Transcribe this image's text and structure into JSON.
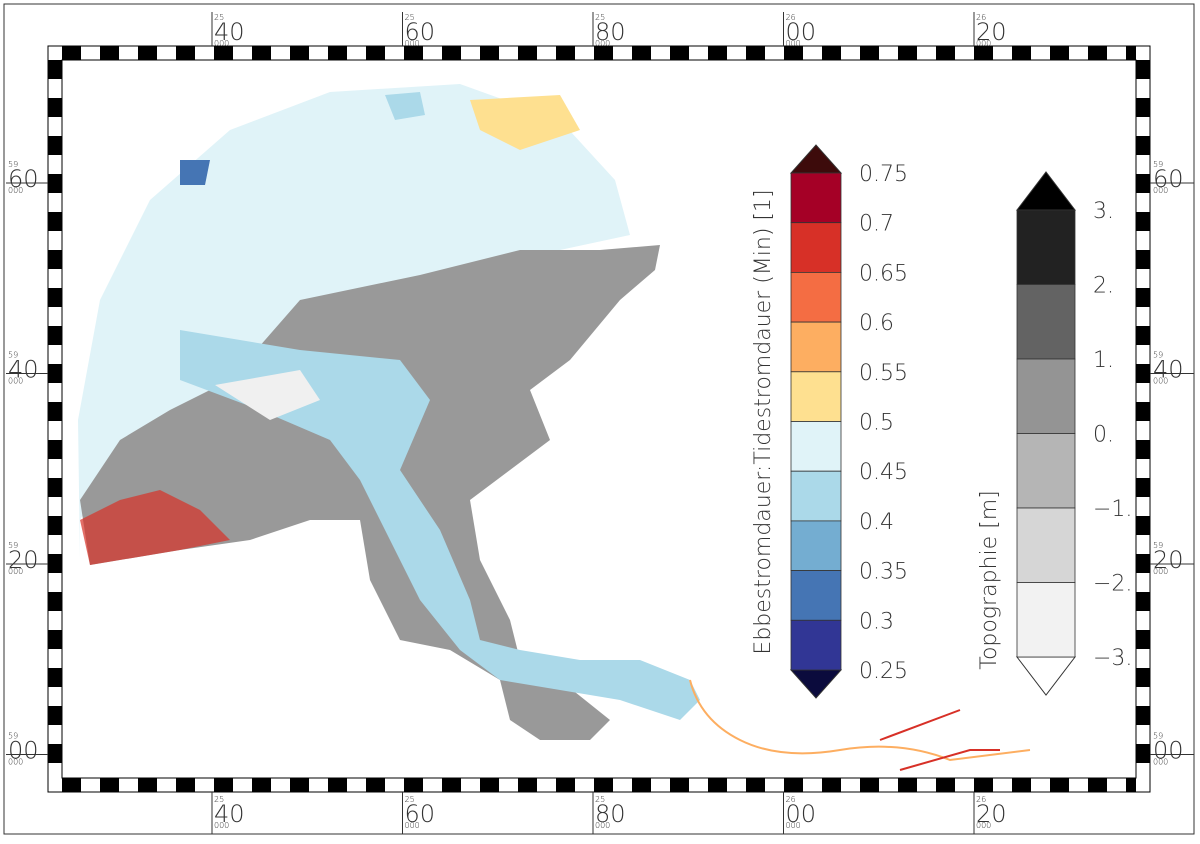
{
  "frame": {
    "x_labels": [
      {
        "deg": "25",
        "min": "40",
        "sub": "000"
      },
      {
        "deg": "25",
        "min": "60",
        "sub": "000"
      },
      {
        "deg": "25",
        "min": "80",
        "sub": "000"
      },
      {
        "deg": "26",
        "min": "00",
        "sub": "000"
      },
      {
        "deg": "26",
        "min": "20",
        "sub": "000"
      }
    ],
    "y_labels": [
      {
        "deg": "59",
        "min": "60",
        "sub": "000"
      },
      {
        "deg": "59",
        "min": "40",
        "sub": "000"
      },
      {
        "deg": "59",
        "min": "20",
        "sub": "000"
      },
      {
        "deg": "59",
        "min": "00",
        "sub": "000"
      }
    ]
  },
  "legend_ratio": {
    "title": "Ebbestromdauer:Tidestromdauer (Min) [1]",
    "labels": [
      "0.75",
      "0.7",
      "0.65",
      "0.6",
      "0.55",
      "0.5",
      "0.45",
      "0.4",
      "0.35",
      "0.3",
      "0.25"
    ],
    "colors": [
      "#a50026",
      "#d73027",
      "#f46d43",
      "#fdae61",
      "#fee090",
      "#e0f3f8",
      "#abd9e9",
      "#74add1",
      "#4575b4",
      "#313695"
    ],
    "over_color": "#3d0b0b",
    "under_color": "#0b0b3d"
  },
  "legend_topo": {
    "title": "Topographie [m]",
    "labels": [
      "3.",
      "2.",
      "1.",
      "0.",
      "−1.",
      "−2.",
      "−3."
    ],
    "colors": [
      "#222222",
      "#636363",
      "#949494",
      "#b5b5b5",
      "#d6d6d6",
      "#f2f2f2"
    ],
    "over_color": "#000000",
    "under_color": "#ffffff"
  }
}
